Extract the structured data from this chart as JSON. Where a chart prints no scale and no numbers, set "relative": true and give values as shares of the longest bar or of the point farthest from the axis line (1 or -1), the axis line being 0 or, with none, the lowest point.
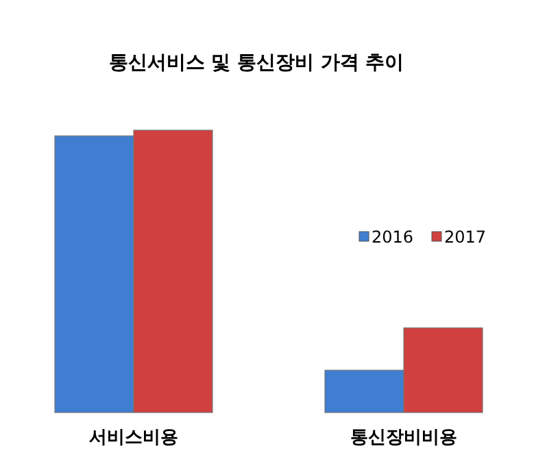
{
  "chart_data": {
    "type": "bar",
    "title": "통신서비스 및 통신장비 가격 추이",
    "categories": [
      "서비스비용",
      "통신장비비용"
    ],
    "relative": true,
    "legend": "right",
    "series": [
      {
        "name": "2016",
        "color": "#3f7ed0",
        "values": [
          0.98,
          0.15
        ]
      },
      {
        "name": "2017",
        "color": "#d04040",
        "values": [
          1,
          0.3
        ]
      }
    ]
  }
}
